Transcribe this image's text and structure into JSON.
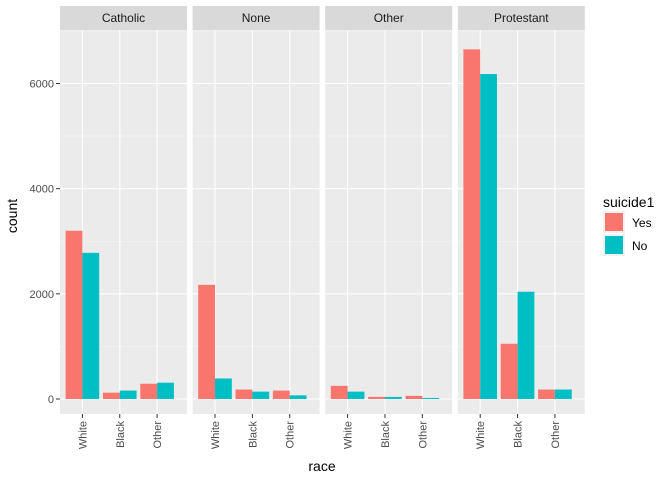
{
  "chart_data": {
    "type": "bar",
    "facets": [
      "Catholic",
      "None",
      "Other",
      "Protestant"
    ],
    "categories": [
      "White",
      "Black",
      "Other"
    ],
    "xlabel": "race",
    "ylabel": "count",
    "ylim": [
      0,
      7000
    ],
    "yticks": [
      0,
      2000,
      4000,
      6000
    ],
    "ytick_labels": [
      "0",
      "2000",
      "4000",
      "6000"
    ],
    "grid": true,
    "legend": {
      "title": "suicide1",
      "position": "right",
      "entries": [
        {
          "label": "Yes",
          "color": "#F8766D"
        },
        {
          "label": "No",
          "color": "#00BFC4"
        }
      ]
    },
    "series": [
      {
        "name": "Yes",
        "color": "#F8766D",
        "values": {
          "Catholic": [
            3200,
            120,
            290
          ],
          "None": [
            2170,
            180,
            160
          ],
          "Other": [
            250,
            40,
            60
          ],
          "Protestant": [
            6650,
            1050,
            180
          ]
        }
      },
      {
        "name": "No",
        "color": "#00BFC4",
        "values": {
          "Catholic": [
            2780,
            160,
            310
          ],
          "None": [
            390,
            140,
            70
          ],
          "Other": [
            140,
            40,
            20
          ],
          "Protestant": [
            6180,
            2040,
            180
          ]
        }
      }
    ]
  }
}
